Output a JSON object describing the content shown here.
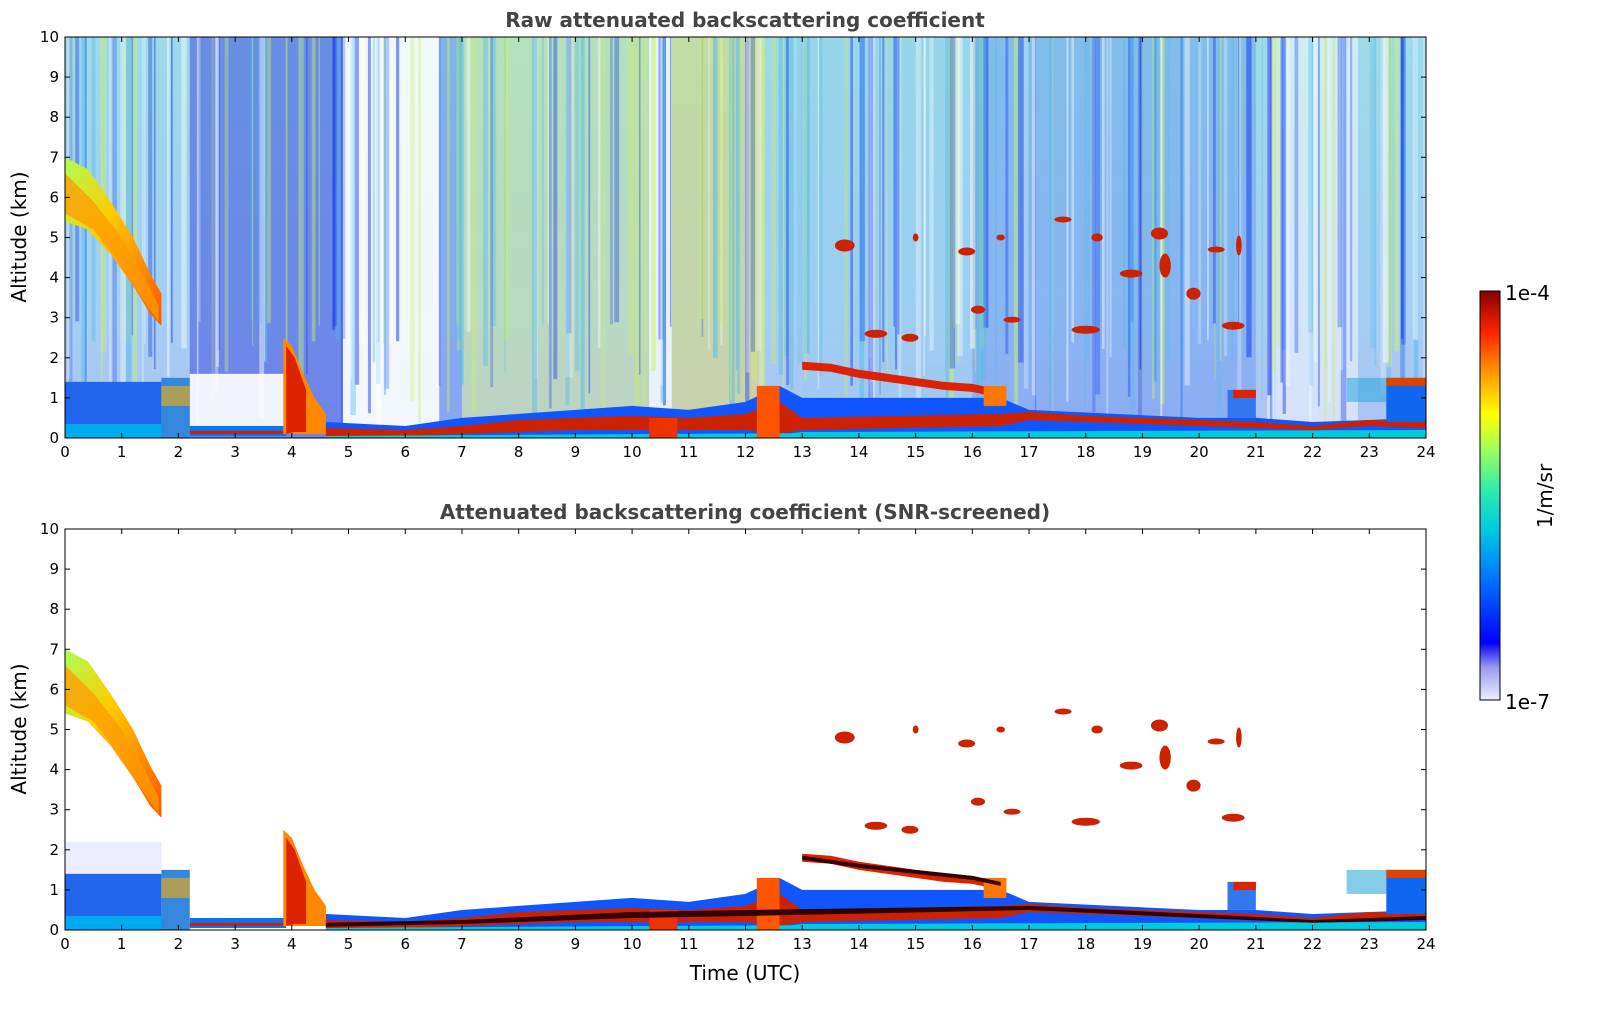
{
  "chart_data": [
    {
      "type": "heatmap",
      "title": "Raw attenuated backscattering coefficient",
      "xlabel": "",
      "ylabel": "Altitude (km)",
      "xlim": [
        0,
        24
      ],
      "ylim": [
        0,
        10
      ],
      "xticks": [
        0,
        1,
        2,
        3,
        4,
        5,
        6,
        7,
        8,
        9,
        10,
        11,
        12,
        13,
        14,
        15,
        16,
        17,
        18,
        19,
        20,
        21,
        22,
        23,
        24
      ],
      "yticks": [
        0,
        1,
        2,
        3,
        4,
        5,
        6,
        7,
        8,
        9,
        10
      ],
      "features": [
        {
          "name": "falling cirrus band",
          "t_start": 0.0,
          "t_end": 1.7,
          "alt_top_start": 7.0,
          "alt_bottom_end": 2.8,
          "intensity": "high"
        },
        {
          "name": "boundary layer",
          "t_start": 2.2,
          "t_end": 24.0,
          "alt_top": 0.6,
          "intensity": "very high"
        },
        {
          "name": "low cloud layer",
          "t_start": 13.0,
          "t_end": 16.5,
          "alt_from": 1.8,
          "alt_to": 1.2,
          "intensity": "very high"
        },
        {
          "name": "mid-level cloud patches",
          "t_start": 13.5,
          "t_end": 21.0,
          "alt_range": [
            2.5,
            5.5
          ],
          "intensity": "very high"
        }
      ]
    },
    {
      "type": "heatmap",
      "title": "Attenuated backscattering coefficient (SNR-screened)",
      "xlabel": "Time (UTC)",
      "ylabel": "Altitude (km)",
      "xlim": [
        0,
        24
      ],
      "ylim": [
        0,
        10
      ],
      "xticks": [
        0,
        1,
        2,
        3,
        4,
        5,
        6,
        7,
        8,
        9,
        10,
        11,
        12,
        13,
        14,
        15,
        16,
        17,
        18,
        19,
        20,
        21,
        22,
        23,
        24
      ],
      "yticks": [
        0,
        1,
        2,
        3,
        4,
        5,
        6,
        7,
        8,
        9,
        10
      ]
    }
  ],
  "colorbar": {
    "label": "1/m/sr",
    "max_label": "1e-4",
    "min_label": "1e-7",
    "scale": "log",
    "range": [
      1e-07,
      0.0001
    ]
  }
}
